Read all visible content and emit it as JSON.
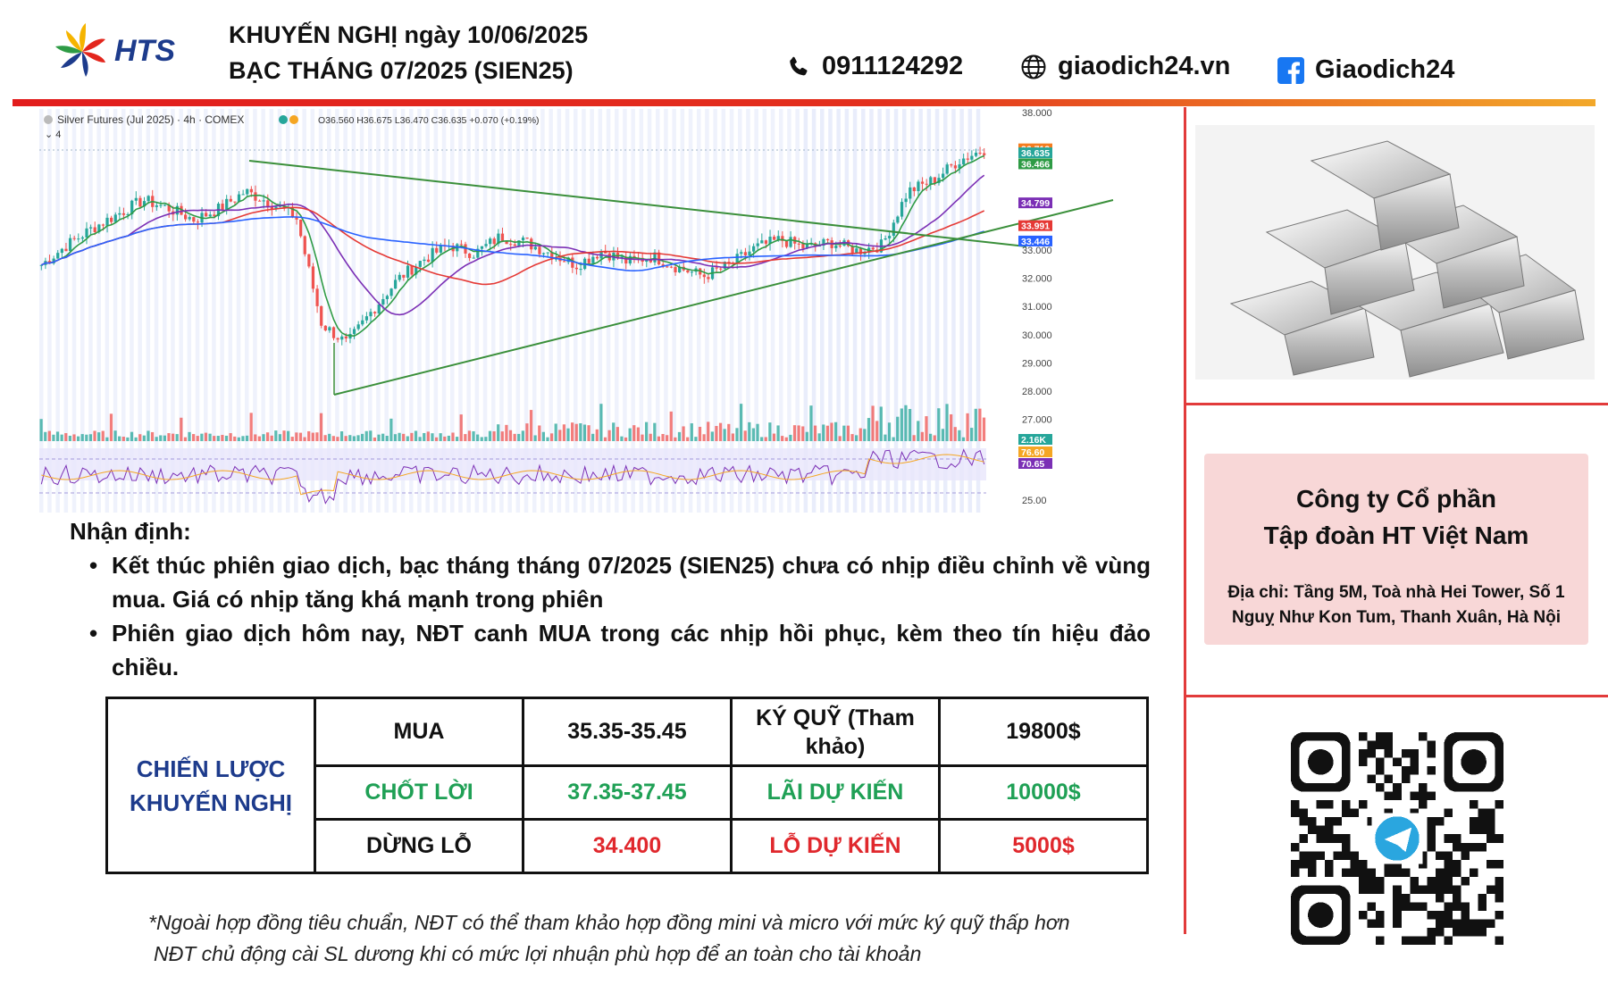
{
  "header": {
    "brand": "HTS",
    "title_line1": "KHUYẾN NGHỊ ngày 10/06/2025",
    "title_line2": "BẠC THÁNG 07/2025 (SIEN25)",
    "phone": "0911124292",
    "website": "giaodich24.vn",
    "facebook": "Giaodich24",
    "icons": [
      "phone-icon",
      "globe-icon",
      "facebook-icon"
    ]
  },
  "chart_data": {
    "type": "candlestick",
    "title": "Silver Futures (Jul 2025) · 4h · COMEX",
    "ohlc": "O36.560 H36.675 L36.470 C36.635 +0.070 (+0.19%)",
    "ylim": [
      25,
      38
    ],
    "y_ticks": [
      "38.000",
      "33.000",
      "32.000",
      "31.000",
      "30.000",
      "29.000",
      "28.000",
      "27.000",
      "25.00"
    ],
    "price_path": [
      32.6,
      33.3,
      33.9,
      34.4,
      34.9,
      34.6,
      34.2,
      34.6,
      35.2,
      34.8,
      34.3,
      30.5,
      29.8,
      31.0,
      32.1,
      32.8,
      33.3,
      33.0,
      33.6,
      33.4,
      33.0,
      32.6,
      33.1,
      32.7,
      32.9,
      32.5,
      32.2,
      32.6,
      33.2,
      33.5,
      33.2,
      33.4,
      33.1,
      33.3,
      35.2,
      35.6,
      36.3,
      36.7
    ],
    "price_badges": [
      {
        "text": "36.713",
        "color": "#f57c1f"
      },
      {
        "text": "36.635",
        "color": "#26a69a"
      },
      {
        "text": "36.466",
        "color": "#2e9b45"
      },
      {
        "text": "34.799",
        "color": "#7b2fb5"
      },
      {
        "text": "33.991",
        "color": "#e53935"
      },
      {
        "text": "33.446",
        "color": "#2962ff"
      }
    ],
    "indicator_badges": [
      {
        "text": "2.16K",
        "color": "#26a69a"
      },
      {
        "text": "76.60",
        "color": "#f5a623"
      },
      {
        "text": "70.65",
        "color": "#7b2fb5"
      }
    ],
    "colors": {
      "up": "#26a69a",
      "down": "#ef5350",
      "ma_fast": "#2e9b45",
      "ma_mid": "#7b2fb5",
      "ma_slow": "#e53935",
      "ma_long": "#2962ff",
      "trendline": "#3a8f3a",
      "band": "#e8ecfb"
    }
  },
  "analysis": {
    "heading": "Nhận định:",
    "bullets": [
      "Kết thúc phiên giao dịch, bạc tháng tháng 07/2025 (SIEN25) chưa có nhịp điều chỉnh về vùng mua. Giá có nhịp tăng khá mạnh trong phiên",
      "Phiên giao dịch hôm nay, NĐT canh MUA trong các nhịp hồi phục, kèm theo tín hiệu đảo chiều."
    ]
  },
  "strategy": {
    "label": "CHIẾN LƯỢC KHUYẾN NGHỊ",
    "rows": [
      {
        "action": "MUA",
        "range": "35.35-35.45",
        "metric": "KÝ QUỸ (Tham khảo)",
        "value": "19800$"
      },
      {
        "action": "CHỐT LỜI",
        "range": "37.35-37.45",
        "metric": "LÃI DỰ KIẾN",
        "value": "10000$"
      },
      {
        "action": "DỪNG LỖ",
        "range": "34.400",
        "metric": "LỖ DỰ KIẾN",
        "value": "5000$"
      }
    ]
  },
  "footnote": [
    "*Ngoài hợp đồng tiêu chuẩn, NĐT có thể tham khảo hợp đồng mini và micro với mức ký quỹ thấp hơn",
    "NĐT chủ động cài SL dương khi có mức lợi nhuận phù hợp để an toàn cho tài khoản"
  ],
  "company": {
    "name_line1": "Công ty Cổ phần",
    "name_line2": "Tập đoàn HT Việt Nam",
    "address_line1": "Địa chỉ: Tầng 5M, Toà nhà Hei Tower, Số 1",
    "address_line2": "Nguỵ Như Kon Tum, Thanh Xuân, Hà Nội"
  },
  "colors": {
    "accent_red": "#e23b3b",
    "brand_blue": "#1d3b8c",
    "green": "#1fa055",
    "red": "#e0282d",
    "company_bg": "#f8d7d7"
  }
}
